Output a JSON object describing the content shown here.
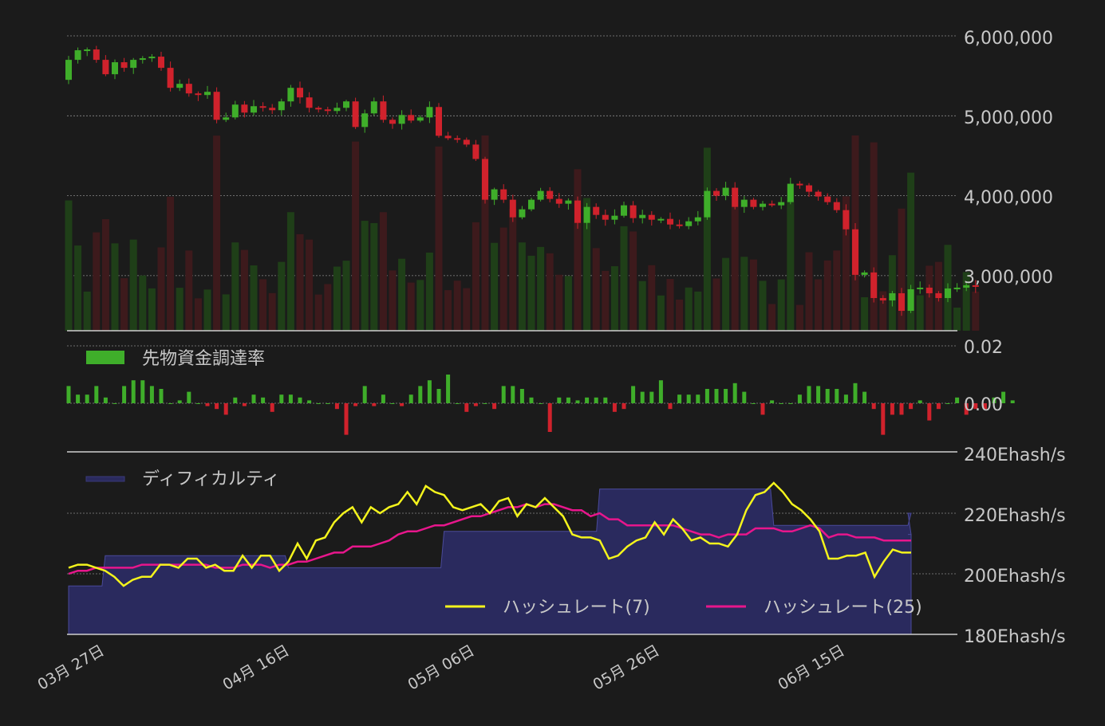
{
  "colors": {
    "background": "#1b1b1b",
    "up": "#3fae2a",
    "down": "#d0222c",
    "up_volume": "#1f3f18",
    "down_volume": "#3d1a1c",
    "grid": "#8a8a8a",
    "axis_text": "#c8c8c8",
    "difficulty_fill": "#2a2a5e",
    "difficulty_stroke": "#4a4a9a",
    "hash7": "#f4f41c",
    "hash25": "#e8168c"
  },
  "panels": {
    "price": {
      "y_ticks": [
        "6,000,000",
        "5,000,000",
        "4,000,000",
        "3,000,000"
      ],
      "y_tick_values": [
        6000000,
        5000000,
        4000000,
        3000000
      ]
    },
    "funding": {
      "legend_label": "先物資金調達率",
      "y_ticks": [
        "0.02",
        "0.00"
      ],
      "y_tick_values": [
        0.02,
        0.0
      ]
    },
    "hashrate": {
      "legend_label": "ディフィカルティ",
      "y_ticks": [
        "240Ehash/s",
        "220Ehash/s",
        "200Ehash/s",
        "180Ehash/s"
      ],
      "y_tick_values": [
        240,
        220,
        200,
        180
      ],
      "series_labels": [
        "ハッシュレート(7)",
        "ハッシュレート(25)"
      ]
    }
  },
  "x_ticks": [
    "03月 27日",
    "04月 16日",
    "05月 06日",
    "05月 26日",
    "06月 15日"
  ],
  "chart_data": [
    {
      "type": "candlestick",
      "ylim": [
        2300000,
        6000000
      ],
      "note": "close prices (JPY), daily, 03-27 to 06-25",
      "close": [
        5700000,
        5820000,
        5830000,
        5700000,
        5520000,
        5670000,
        5600000,
        5700000,
        5720000,
        5740000,
        5600000,
        5350000,
        5400000,
        5280000,
        5260000,
        5300000,
        4950000,
        4980000,
        5140000,
        5040000,
        5120000,
        5100000,
        5070000,
        5180000,
        5350000,
        5230000,
        5100000,
        5080000,
        5060000,
        5100000,
        5180000,
        4860000,
        5030000,
        5180000,
        4950000,
        4900000,
        5010000,
        4940000,
        4980000,
        5110000,
        4750000,
        4720000,
        4700000,
        4640000,
        4460000,
        3950000,
        4080000,
        3950000,
        3730000,
        3830000,
        3950000,
        4060000,
        3960000,
        3900000,
        3940000,
        3660000,
        3860000,
        3760000,
        3700000,
        3750000,
        3880000,
        3720000,
        3760000,
        3700000,
        3710000,
        3640000,
        3620000,
        3680000,
        3730000,
        4060000,
        4000000,
        4100000,
        3860000,
        3950000,
        3860000,
        3900000,
        3880000,
        3920000,
        4150000,
        4130000,
        4050000,
        3990000,
        3920000,
        3820000,
        3580000,
        3010000,
        3040000,
        2720000,
        2690000,
        2780000,
        2560000,
        2830000,
        2850000,
        2780000,
        2720000,
        2840000,
        2850000,
        2880000,
        2860000
      ],
      "volume_bars": "shaded per-day volume behind candles (relative)"
    },
    {
      "type": "bar",
      "name": "先物資金調達率",
      "values": [
        0.006,
        0.003,
        0.003,
        0.006,
        0.002,
        0.0,
        0.006,
        0.008,
        0.008,
        0.006,
        0.005,
        0.0,
        0.001,
        0.004,
        0.0,
        -0.001,
        -0.002,
        -0.004,
        0.002,
        -0.001,
        0.003,
        0.002,
        -0.003,
        0.003,
        0.003,
        0.002,
        0.001,
        0.0,
        0.0,
        -0.002,
        -0.011,
        -0.001,
        0.006,
        -0.001,
        0.003,
        0.0,
        -0.001,
        0.003,
        0.006,
        0.008,
        0.005,
        0.01,
        0.0,
        -0.003,
        -0.001,
        0.0,
        -0.002,
        0.006,
        0.006,
        0.005,
        0.002,
        0.0,
        -0.01,
        0.002,
        0.002,
        0.001,
        0.002,
        0.002,
        0.002,
        -0.003,
        -0.002,
        0.006,
        0.004,
        0.004,
        0.008,
        -0.002,
        0.003,
        0.003,
        0.003,
        0.005,
        0.005,
        0.005,
        0.007,
        0.004,
        0.0,
        -0.004,
        0.001,
        0.0,
        0.0,
        0.003,
        0.006,
        0.006,
        0.005,
        0.005,
        0.003,
        0.007,
        0.004,
        -0.002,
        -0.011,
        -0.004,
        -0.004,
        -0.002,
        0.001,
        -0.006,
        -0.002,
        0.0,
        0.002,
        -0.004,
        -0.002,
        -0.002,
        0.002,
        0.004,
        0.001
      ]
    },
    {
      "type": "line",
      "ylim": [
        180,
        240
      ],
      "series": [
        {
          "name": "ハッシュレート(7)",
          "values": [
            202,
            203,
            203,
            202,
            201,
            199,
            196,
            198,
            199,
            199,
            203,
            203,
            202,
            205,
            205,
            202,
            203,
            201,
            201,
            206,
            202,
            206,
            206,
            201,
            204,
            210,
            205,
            211,
            212,
            217,
            220,
            222,
            217,
            222,
            220,
            222,
            223,
            227,
            223,
            229,
            227,
            226,
            222,
            221,
            222,
            223,
            220,
            224,
            225,
            219,
            223,
            222,
            225,
            222,
            219,
            213,
            212,
            212,
            211,
            205,
            206,
            209,
            211,
            212,
            217,
            213,
            218,
            215,
            211,
            212,
            210,
            210,
            209,
            213,
            221,
            226,
            227,
            230,
            227,
            223,
            221,
            218,
            214,
            205,
            205,
            206,
            206,
            207,
            199,
            204,
            208,
            207,
            207
          ]
        },
        {
          "name": "ハッシュレート(25)",
          "values": [
            200,
            201,
            201,
            202,
            202,
            202,
            202,
            202,
            203,
            203,
            203,
            203,
            203,
            203,
            203,
            203,
            202,
            202,
            202,
            203,
            203,
            203,
            202,
            203,
            203,
            204,
            204,
            205,
            206,
            207,
            207,
            209,
            209,
            209,
            210,
            211,
            213,
            214,
            214,
            215,
            216,
            216,
            217,
            218,
            219,
            219,
            220,
            221,
            222,
            222,
            223,
            222,
            223,
            223,
            222,
            221,
            221,
            219,
            220,
            218,
            218,
            216,
            216,
            216,
            216,
            216,
            216,
            215,
            214,
            213,
            213,
            212,
            213,
            213,
            213,
            215,
            215,
            215,
            214,
            214,
            215,
            216,
            215,
            212,
            213,
            213,
            212,
            212,
            212,
            211,
            211,
            211,
            211
          ]
        }
      ],
      "difficulty": {
        "name": "ディフィカルティ",
        "steps": [
          [
            0,
            196
          ],
          [
            4,
            206
          ],
          [
            24,
            202
          ],
          [
            41,
            214
          ],
          [
            58,
            228
          ],
          [
            77,
            216
          ],
          [
            96,
            220
          ],
          [
            104,
            213
          ]
        ]
      }
    }
  ]
}
